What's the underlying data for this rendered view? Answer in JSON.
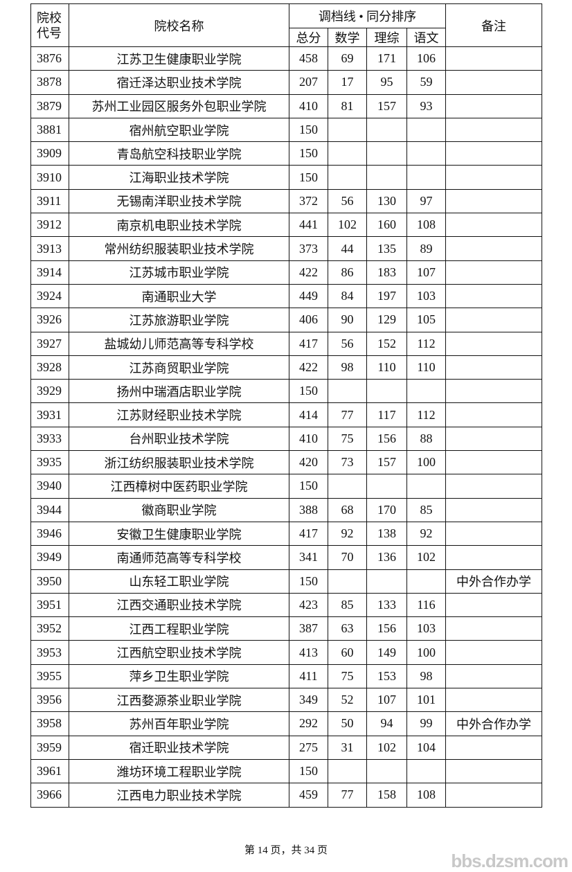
{
  "header": {
    "code_label": "院校代号",
    "name_label": "院校名称",
    "group_label": "调档线 • 同分排序",
    "sub_labels": [
      "总分",
      "数学",
      "理综",
      "语文"
    ],
    "note_label": "备注"
  },
  "rows": [
    {
      "code": "3876",
      "name": "江苏卫生健康职业学院",
      "total": "458",
      "math": "69",
      "sci": "171",
      "chn": "106",
      "note": ""
    },
    {
      "code": "3878",
      "name": "宿迁泽达职业技术学院",
      "total": "207",
      "math": "17",
      "sci": "95",
      "chn": "59",
      "note": ""
    },
    {
      "code": "3879",
      "name": "苏州工业园区服务外包职业学院",
      "total": "410",
      "math": "81",
      "sci": "157",
      "chn": "93",
      "note": ""
    },
    {
      "code": "3881",
      "name": "宿州航空职业学院",
      "total": "150",
      "math": "",
      "sci": "",
      "chn": "",
      "note": ""
    },
    {
      "code": "3909",
      "name": "青岛航空科技职业学院",
      "total": "150",
      "math": "",
      "sci": "",
      "chn": "",
      "note": ""
    },
    {
      "code": "3910",
      "name": "江海职业技术学院",
      "total": "150",
      "math": "",
      "sci": "",
      "chn": "",
      "note": ""
    },
    {
      "code": "3911",
      "name": "无锡南洋职业技术学院",
      "total": "372",
      "math": "56",
      "sci": "130",
      "chn": "97",
      "note": ""
    },
    {
      "code": "3912",
      "name": "南京机电职业技术学院",
      "total": "441",
      "math": "102",
      "sci": "160",
      "chn": "108",
      "note": ""
    },
    {
      "code": "3913",
      "name": "常州纺织服装职业技术学院",
      "total": "373",
      "math": "44",
      "sci": "135",
      "chn": "89",
      "note": ""
    },
    {
      "code": "3914",
      "name": "江苏城市职业学院",
      "total": "422",
      "math": "86",
      "sci": "183",
      "chn": "107",
      "note": ""
    },
    {
      "code": "3924",
      "name": "南通职业大学",
      "total": "449",
      "math": "84",
      "sci": "197",
      "chn": "103",
      "note": ""
    },
    {
      "code": "3926",
      "name": "江苏旅游职业学院",
      "total": "406",
      "math": "90",
      "sci": "129",
      "chn": "105",
      "note": ""
    },
    {
      "code": "3927",
      "name": "盐城幼儿师范高等专科学校",
      "total": "417",
      "math": "56",
      "sci": "152",
      "chn": "112",
      "note": ""
    },
    {
      "code": "3928",
      "name": "江苏商贸职业学院",
      "total": "422",
      "math": "98",
      "sci": "110",
      "chn": "110",
      "note": ""
    },
    {
      "code": "3929",
      "name": "扬州中瑞酒店职业学院",
      "total": "150",
      "math": "",
      "sci": "",
      "chn": "",
      "note": ""
    },
    {
      "code": "3931",
      "name": "江苏财经职业技术学院",
      "total": "414",
      "math": "77",
      "sci": "117",
      "chn": "112",
      "note": ""
    },
    {
      "code": "3933",
      "name": "台州职业技术学院",
      "total": "410",
      "math": "75",
      "sci": "156",
      "chn": "88",
      "note": ""
    },
    {
      "code": "3935",
      "name": "浙江纺织服装职业技术学院",
      "total": "420",
      "math": "73",
      "sci": "157",
      "chn": "100",
      "note": ""
    },
    {
      "code": "3940",
      "name": "江西樟树中医药职业学院",
      "total": "150",
      "math": "",
      "sci": "",
      "chn": "",
      "note": ""
    },
    {
      "code": "3944",
      "name": "徽商职业学院",
      "total": "388",
      "math": "68",
      "sci": "170",
      "chn": "85",
      "note": ""
    },
    {
      "code": "3946",
      "name": "安徽卫生健康职业学院",
      "total": "417",
      "math": "92",
      "sci": "138",
      "chn": "92",
      "note": ""
    },
    {
      "code": "3949",
      "name": "南通师范高等专科学校",
      "total": "341",
      "math": "70",
      "sci": "136",
      "chn": "102",
      "note": ""
    },
    {
      "code": "3950",
      "name": "山东轻工职业学院",
      "total": "150",
      "math": "",
      "sci": "",
      "chn": "",
      "note": "中外合作办学"
    },
    {
      "code": "3951",
      "name": "江西交通职业技术学院",
      "total": "423",
      "math": "85",
      "sci": "133",
      "chn": "116",
      "note": ""
    },
    {
      "code": "3952",
      "name": "江西工程职业学院",
      "total": "387",
      "math": "63",
      "sci": "156",
      "chn": "103",
      "note": ""
    },
    {
      "code": "3953",
      "name": "江西航空职业技术学院",
      "total": "413",
      "math": "60",
      "sci": "149",
      "chn": "100",
      "note": ""
    },
    {
      "code": "3955",
      "name": "萍乡卫生职业学院",
      "total": "411",
      "math": "75",
      "sci": "153",
      "chn": "98",
      "note": ""
    },
    {
      "code": "3956",
      "name": "江西婺源茶业职业学院",
      "total": "349",
      "math": "52",
      "sci": "107",
      "chn": "101",
      "note": ""
    },
    {
      "code": "3958",
      "name": "苏州百年职业学院",
      "total": "292",
      "math": "50",
      "sci": "94",
      "chn": "99",
      "note": "中外合作办学"
    },
    {
      "code": "3959",
      "name": "宿迁职业技术学院",
      "total": "275",
      "math": "31",
      "sci": "102",
      "chn": "104",
      "note": ""
    },
    {
      "code": "3961",
      "name": "潍坊环境工程职业学院",
      "total": "150",
      "math": "",
      "sci": "",
      "chn": "",
      "note": ""
    },
    {
      "code": "3966",
      "name": "江西电力职业技术学院",
      "total": "459",
      "math": "77",
      "sci": "158",
      "chn": "108",
      "note": ""
    }
  ],
  "footer": {
    "page_text": "第 14 页，共 34 页"
  },
  "watermark": "bbs.dzsm.com"
}
